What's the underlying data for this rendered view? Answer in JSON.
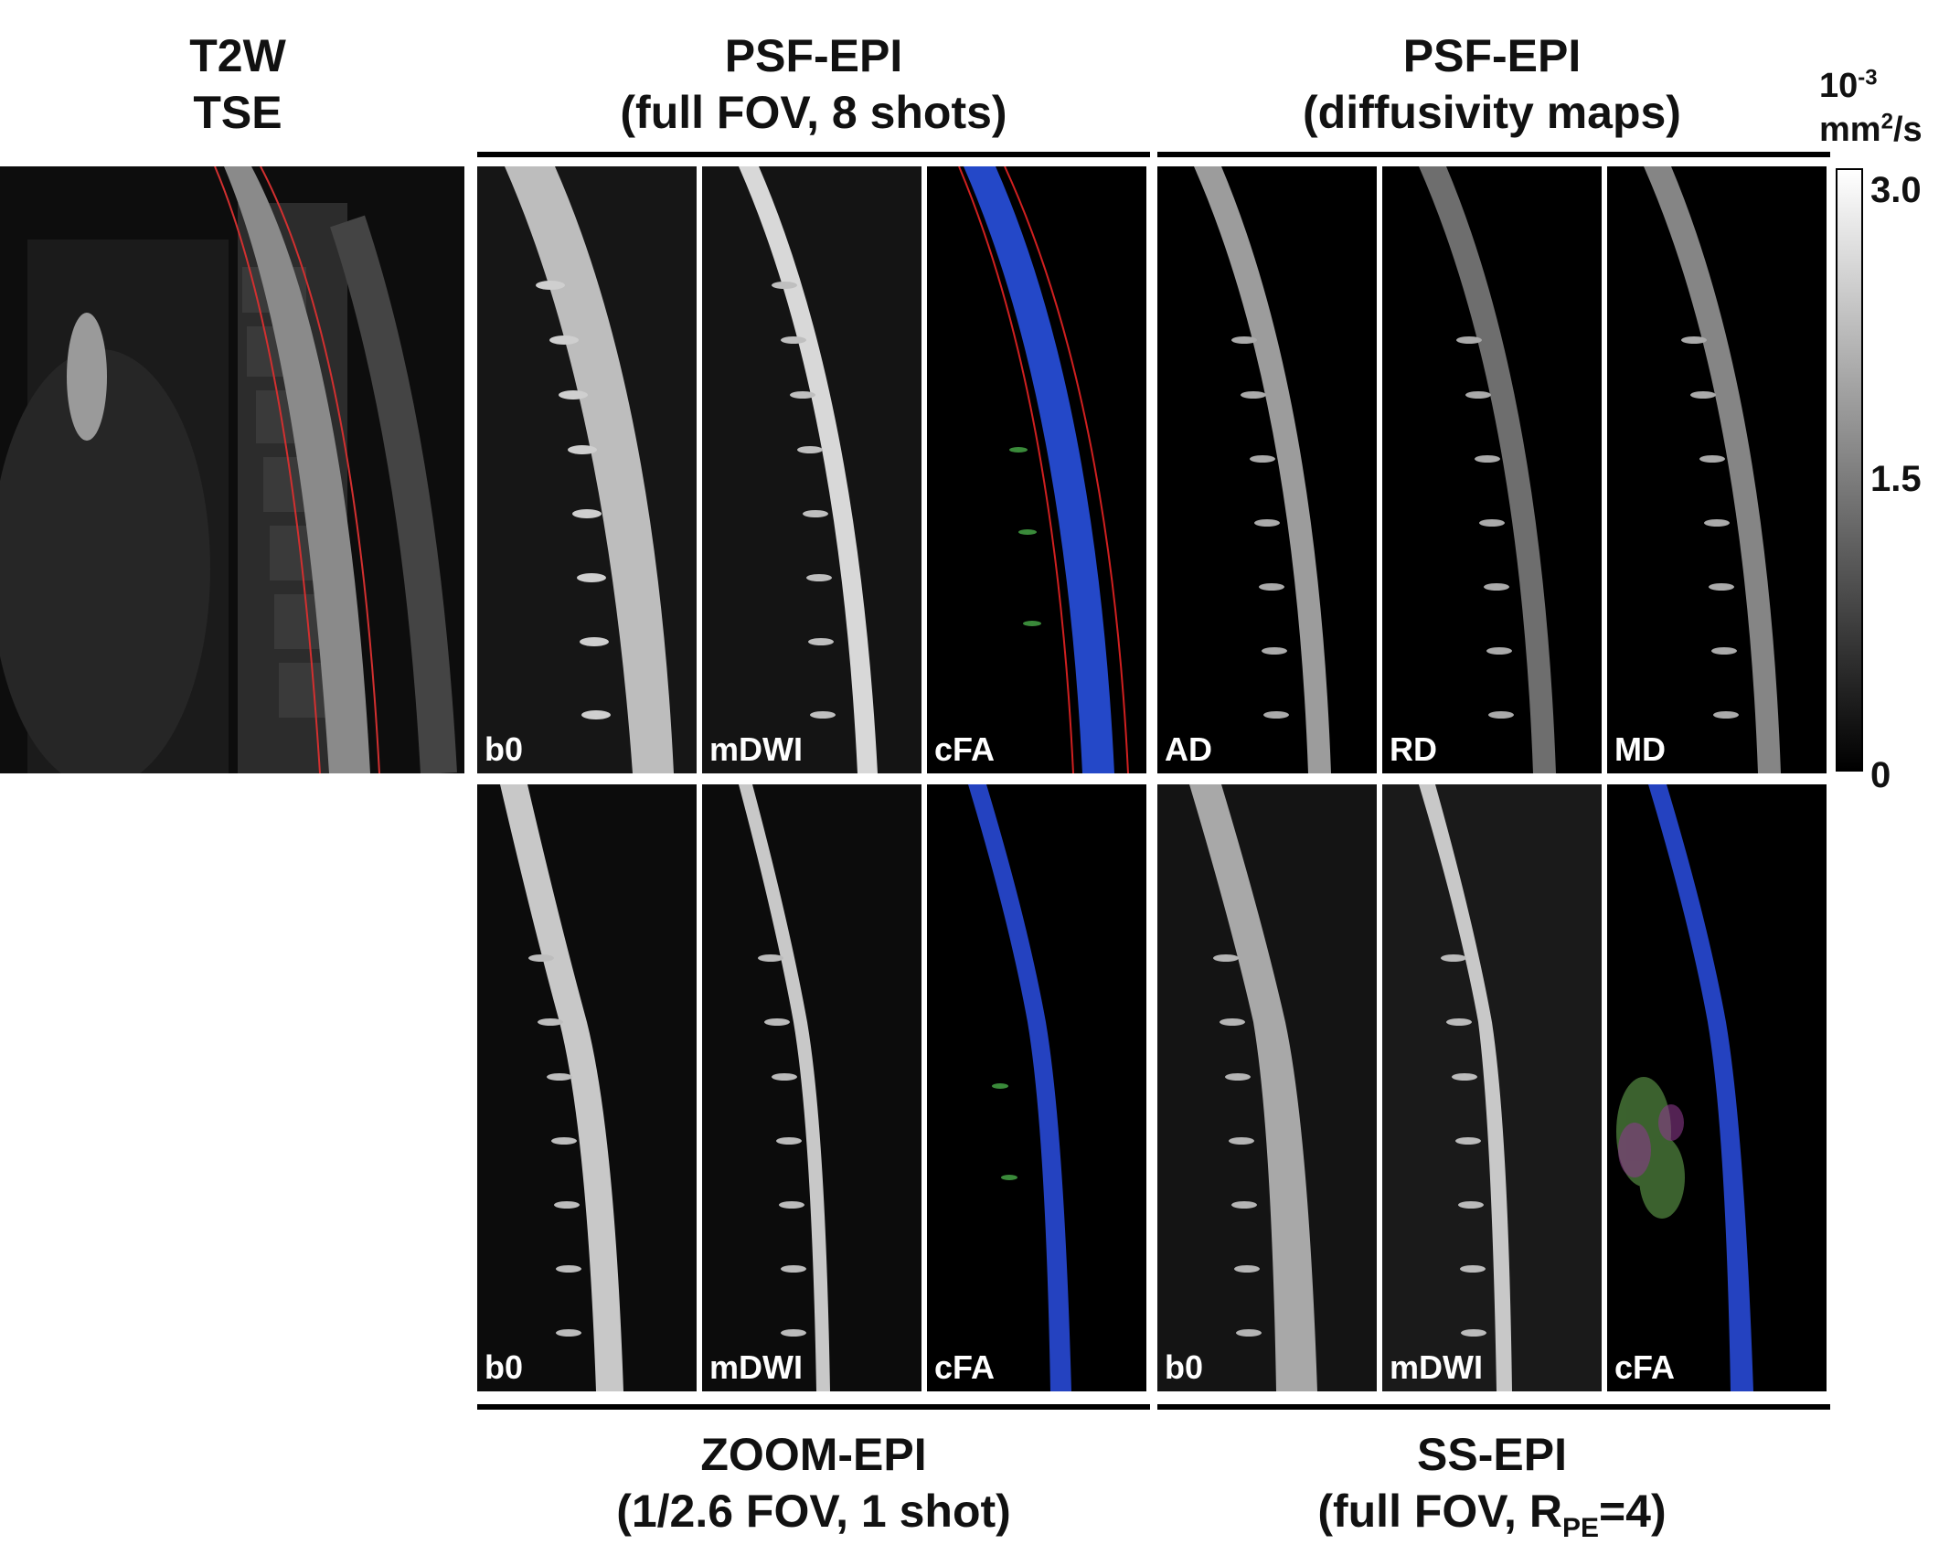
{
  "figure": {
    "t2w_header": {
      "line1": "T2W",
      "line2": "TSE"
    },
    "psf_header": {
      "line1": "PSF-EPI",
      "line2": "(full FOV, 8 shots)"
    },
    "diff_header": {
      "line1": "PSF-EPI",
      "line2": "(diffusivity maps)"
    },
    "zoom_footer": {
      "line1": "ZOOM-EPI",
      "line2": "(1/2.6 FOV, 1 shot)"
    },
    "ss_footer": {
      "line1": "SS-EPI",
      "line2_prefix": "(full FOV, R",
      "line2_sub": "PE",
      "line2_suffix": "=4)"
    },
    "colorbar": {
      "unit_base": "10",
      "unit_exp": "-3",
      "unit_mm": "mm",
      "unit_mm_exp": "2",
      "unit_per_s": "/s",
      "max_label": "3.0",
      "mid_label": "1.5",
      "min_label": "0"
    },
    "row1_labels": [
      "b0",
      "mDWI",
      "cFA",
      "AD",
      "RD",
      "MD"
    ],
    "row2_labels": [
      "b0",
      "mDWI",
      "cFA",
      "b0",
      "mDWI",
      "cFA"
    ]
  }
}
